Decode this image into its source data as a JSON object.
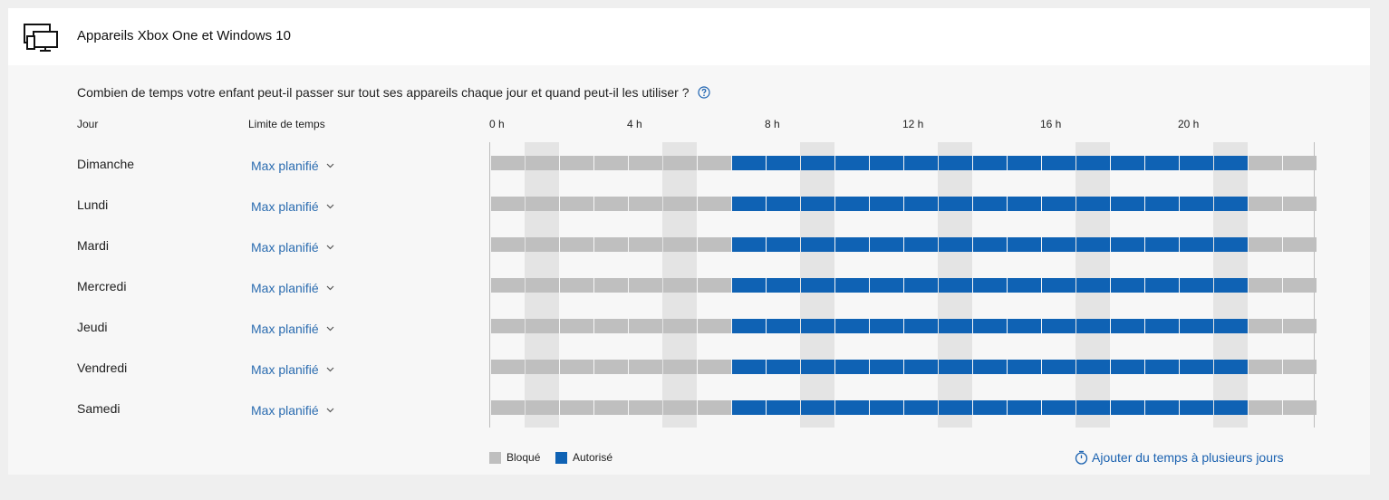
{
  "header": {
    "title": "Appareils Xbox One et Windows 10",
    "icon": "devices-icon"
  },
  "question": "Combien de temps votre enfant peut-il passer sur tout ses appareils chaque jour et quand peut-il les utiliser ?",
  "columns": {
    "day": "Jour",
    "limit": "Limite de temps"
  },
  "hour_ticks": [
    "0 h",
    "4 h",
    "8 h",
    "12 h",
    "16 h",
    "20 h"
  ],
  "days": [
    {
      "name": "Dimanche",
      "limit": "Max planifié"
    },
    {
      "name": "Lundi",
      "limit": "Max planifié"
    },
    {
      "name": "Mardi",
      "limit": "Max planifié"
    },
    {
      "name": "Mercredi",
      "limit": "Max planifié"
    },
    {
      "name": "Jeudi",
      "limit": "Max planifié"
    },
    {
      "name": "Vendredi",
      "limit": "Max planifié"
    },
    {
      "name": "Samedi",
      "limit": "Max planifié"
    }
  ],
  "schedule": {
    "slots_per_day": 24,
    "allowed_from_hour": 7,
    "allowed_until_hour": 22
  },
  "legend": {
    "blocked": "Bloqué",
    "allowed": "Autorisé"
  },
  "add_time_link": "Ajouter du temps à plusieurs jours",
  "colors": {
    "allowed": "#0f62b4",
    "blocked": "#bfbfbf",
    "link": "#2b6cb0"
  }
}
